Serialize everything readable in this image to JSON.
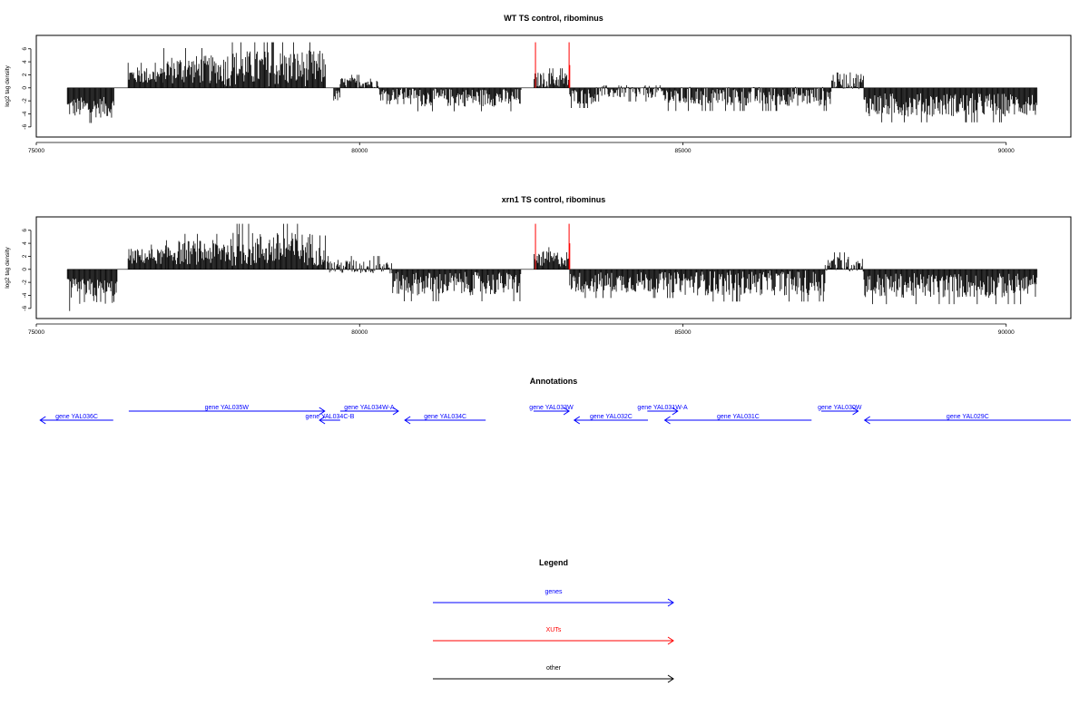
{
  "colors": {
    "genes": "#0000ff",
    "xuts": "#ff0000",
    "other": "#000000",
    "axis": "#000000"
  },
  "chart_data": [
    {
      "type": "bar",
      "title": "WT TS control, ribominus",
      "xlabel": "",
      "ylabel": "log2 tag density",
      "xlim": [
        75000,
        91000
      ],
      "ylim": [
        -7,
        7.5
      ],
      "xticks": [
        75000,
        80000,
        85000,
        90000
      ],
      "yticks": [
        -6,
        -4,
        -2,
        0,
        2,
        4,
        6
      ],
      "grid": false,
      "series": [
        {
          "color": "#000000",
          "segments": [
            {
              "x": [
                75480,
                76210
              ],
              "mean": -3.0,
              "amp": 1.6
            },
            {
              "x": [
                76420,
                76950
              ],
              "mean": 1.9,
              "amp": 1.3
            },
            {
              "x": [
                76950,
                77900
              ],
              "mean": 2.8,
              "amp": 2.2
            },
            {
              "x": [
                77900,
                79480
              ],
              "mean": 3.0,
              "amp": 2.8
            },
            {
              "x": [
                79600,
                79700
              ],
              "mean": -1.2,
              "amp": 0.9
            },
            {
              "x": [
                79700,
                80300
              ],
              "mean": 0.8,
              "amp": 0.8
            },
            {
              "x": [
                80300,
                80900
              ],
              "mean": -1.0,
              "amp": 1.0
            },
            {
              "x": [
                80900,
                82500
              ],
              "mean": -1.5,
              "amp": 1.4
            },
            {
              "x": [
                82700,
                83250
              ],
              "mean": 1.2,
              "amp": 1.2
            },
            {
              "x": [
                83250,
                83650
              ],
              "mean": -1.3,
              "amp": 1.2
            },
            {
              "x": [
                83650,
                84700
              ],
              "mean": -0.6,
              "amp": 1.0
            },
            {
              "x": [
                84700,
                87300
              ],
              "mean": -1.3,
              "amp": 1.5
            },
            {
              "x": [
                87300,
                87800
              ],
              "mean": 1.1,
              "amp": 1.3
            },
            {
              "x": [
                87800,
                90480
              ],
              "mean": -2.6,
              "amp": 1.8
            }
          ]
        },
        {
          "color": "#ff0000",
          "bars": [
            {
              "x": 82720,
              "y": 7.0
            },
            {
              "x": 83240,
              "y": 7.0
            },
            {
              "x": 83250,
              "y": 3.5
            }
          ]
        }
      ]
    },
    {
      "type": "bar",
      "title": "xrn1 TS control, ribominus",
      "xlabel": "",
      "ylabel": "log2 tag density",
      "xlim": [
        75000,
        91000
      ],
      "ylim": [
        -7,
        7.5
      ],
      "xticks": [
        75000,
        80000,
        85000,
        90000
      ],
      "yticks": [
        -6,
        -4,
        -2,
        0,
        2,
        4,
        6
      ],
      "grid": false,
      "series": [
        {
          "color": "#000000",
          "segments": [
            {
              "x": [
                75480,
                76260
              ],
              "mean": -3.4,
              "amp": 2.0
            },
            {
              "x": [
                76420,
                77000
              ],
              "mean": 2.0,
              "amp": 1.2
            },
            {
              "x": [
                77000,
                77900
              ],
              "mean": 2.6,
              "amp": 1.9
            },
            {
              "x": [
                77900,
                79480
              ],
              "mean": 3.1,
              "amp": 2.6
            },
            {
              "x": [
                79500,
                80500
              ],
              "mean": 0.4,
              "amp": 1.1
            },
            {
              "x": [
                80500,
                82500
              ],
              "mean": -2.2,
              "amp": 1.8
            },
            {
              "x": [
                82700,
                83250
              ],
              "mean": 1.6,
              "amp": 1.2
            },
            {
              "x": [
                83250,
                85000
              ],
              "mean": -2.0,
              "amp": 1.6
            },
            {
              "x": [
                85000,
                87200
              ],
              "mean": -2.1,
              "amp": 1.9
            },
            {
              "x": [
                87200,
                87800
              ],
              "mean": 0.8,
              "amp": 1.2
            },
            {
              "x": [
                87800,
                90480
              ],
              "mean": -2.5,
              "amp": 1.9
            }
          ]
        },
        {
          "color": "#ff0000",
          "bars": [
            {
              "x": 82720,
              "y": 7.0
            },
            {
              "x": 83240,
              "y": 7.0
            },
            {
              "x": 83250,
              "y": 4.0
            }
          ]
        }
      ]
    }
  ],
  "annotations": {
    "title": "Annotations",
    "genes": [
      {
        "label": "gene YAL036C",
        "start": 75060,
        "end": 76190,
        "dir": "left",
        "row": 1
      },
      {
        "label": "gene YAL035W",
        "start": 76430,
        "end": 79460,
        "dir": "right",
        "row": 0
      },
      {
        "label": "gene YAL034C-B",
        "start": 79380,
        "end": 79700,
        "dir": "left",
        "row": 1
      },
      {
        "label": "gene YAL034W-A",
        "start": 79700,
        "end": 80600,
        "dir": "right",
        "row": 0
      },
      {
        "label": "gene YAL034C",
        "start": 80700,
        "end": 81950,
        "dir": "left",
        "row": 1
      },
      {
        "label": "gene YAL033W",
        "start": 82690,
        "end": 83240,
        "dir": "right",
        "row": 0
      },
      {
        "label": "gene YAL032C",
        "start": 83320,
        "end": 84460,
        "dir": "left",
        "row": 1
      },
      {
        "label": "gene YAL031W-A",
        "start": 84450,
        "end": 84920,
        "dir": "right",
        "row": 0
      },
      {
        "label": "gene YAL031C",
        "start": 84720,
        "end": 86990,
        "dir": "left",
        "row": 1
      },
      {
        "label": "gene YAL030W",
        "start": 87140,
        "end": 87710,
        "dir": "right",
        "row": 0
      },
      {
        "label": "gene YAL029C",
        "start": 87810,
        "end": 91000,
        "dir": "left",
        "row": 1
      }
    ]
  },
  "legend": {
    "title": "Legend",
    "items": [
      {
        "label": "genes",
        "color": "#0000ff"
      },
      {
        "label": "XUTs",
        "color": "#ff0000"
      },
      {
        "label": "other",
        "color": "#000000"
      }
    ]
  }
}
